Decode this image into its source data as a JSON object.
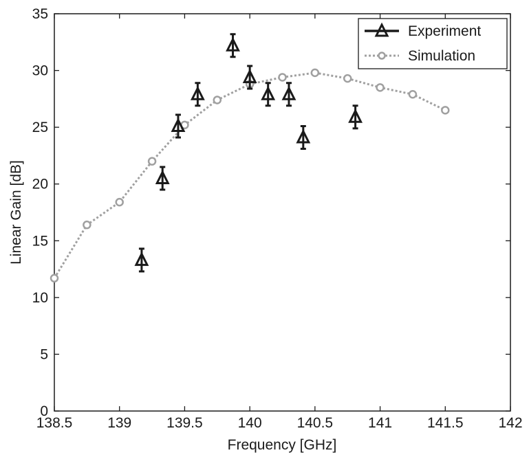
{
  "chart_data": {
    "type": "scatter",
    "xlabel": "Frequency [GHz]",
    "ylabel": "Linear Gain [dB]",
    "xlim": [
      138.5,
      142
    ],
    "ylim": [
      0,
      35
    ],
    "x_ticks": [
      138.5,
      139,
      139.5,
      140,
      140.5,
      141,
      141.5,
      142
    ],
    "x_tick_labels": [
      "138.5",
      "139",
      "139.5",
      "140",
      "140.5",
      "141",
      "141.5",
      "142"
    ],
    "y_ticks": [
      0,
      5,
      10,
      15,
      20,
      25,
      30,
      35
    ],
    "y_tick_labels": [
      "0",
      "5",
      "10",
      "15",
      "20",
      "25",
      "30",
      "35"
    ],
    "grid": false,
    "legend_position": "top-right",
    "series": [
      {
        "name": "Experiment",
        "style": "markers-with-errorbars",
        "marker": "triangle",
        "color": "#1a1a1a",
        "x": [
          139.17,
          139.33,
          139.45,
          139.6,
          139.87,
          140.0,
          140.14,
          140.3,
          140.41,
          140.81
        ],
        "y": [
          13.3,
          20.5,
          25.1,
          27.9,
          32.2,
          29.4,
          27.9,
          27.9,
          24.1,
          25.9
        ],
        "error": [
          1.0,
          1.0,
          1.0,
          1.0,
          1.0,
          1.0,
          1.0,
          1.0,
          1.0,
          1.0
        ]
      },
      {
        "name": "Simulation",
        "style": "dotted-line-circles",
        "marker": "circle",
        "color": "#a0a0a0",
        "x": [
          138.5,
          138.75,
          139.0,
          139.25,
          139.5,
          139.75,
          140.0,
          140.25,
          140.5,
          140.75,
          141.0,
          141.25,
          141.5
        ],
        "y": [
          11.7,
          16.4,
          18.4,
          22.0,
          25.2,
          27.4,
          28.8,
          29.4,
          29.8,
          29.3,
          28.5,
          27.9,
          26.5
        ]
      }
    ]
  }
}
